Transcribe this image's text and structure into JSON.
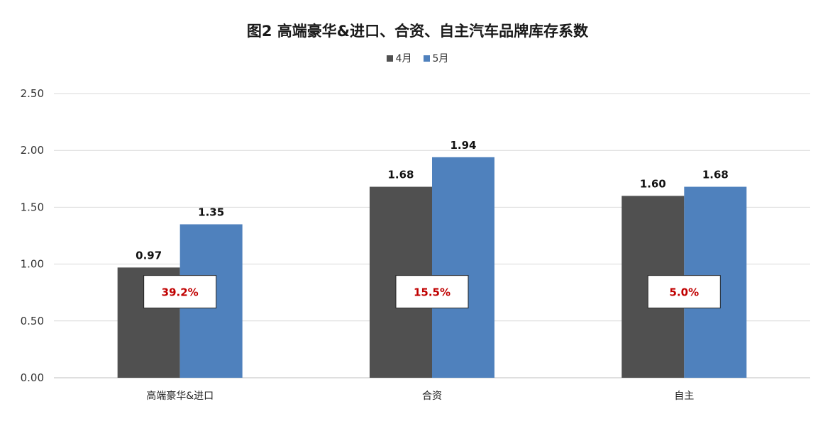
{
  "chart_data": {
    "type": "bar",
    "title": "图2  高端豪华&进口、合资、自主汽车品牌库存系数",
    "xlabel": "",
    "ylabel": "",
    "categories": [
      "高端豪华&进口",
      "合资",
      "自主"
    ],
    "series": [
      {
        "name": "4月",
        "color": "#505050",
        "values": [
          0.97,
          1.68,
          1.6
        ],
        "labels": [
          "0.97",
          "1.68",
          "1.60"
        ]
      },
      {
        "name": "5月",
        "color": "#4f81bd",
        "values": [
          1.35,
          1.94,
          1.68
        ],
        "labels": [
          "1.35",
          "1.94",
          "1.68"
        ]
      }
    ],
    "ylim": [
      0,
      2.5
    ],
    "yticks": [
      "0.00",
      "0.50",
      "1.00",
      "1.50",
      "2.00",
      "2.50"
    ],
    "annotations": [
      "39.2%",
      "15.5%",
      "5.0%"
    ],
    "grid": true,
    "legend_position": "top"
  }
}
